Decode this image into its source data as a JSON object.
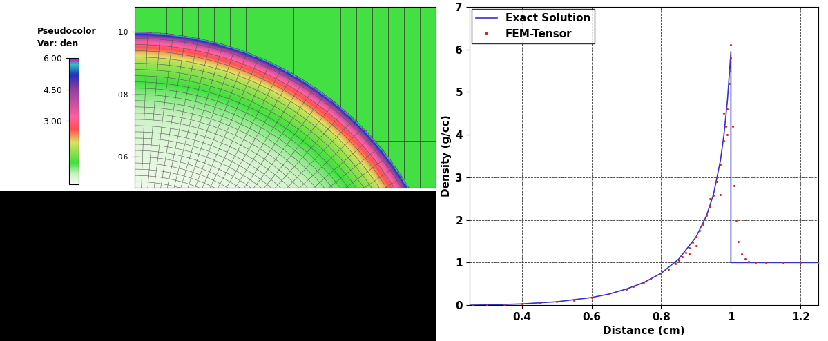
{
  "chart_data": [
    {
      "type": "pseudocolor",
      "title": "Pseudocolor",
      "subtitle": "Var: den",
      "xlim": [
        0.0,
        0.95
      ],
      "ylim": [
        0.5,
        1.08
      ],
      "yticks": [
        0.6,
        0.8,
        {
          "value": 1.0,
          "label": "1.0"
        }
      ],
      "tick_labels": "y",
      "colorbar": {
        "range": [
          0,
          6
        ],
        "ticks": [
          {
            "value": 3,
            "label": "3.00"
          },
          {
            "value": 4.5,
            "label": "4.50"
          },
          {
            "value": 6,
            "label": "6.00"
          }
        ]
      }
    },
    {
      "type": "line",
      "xlabel": "Distance (cm)",
      "ylabel": "Density (g/cc)",
      "xlim": [
        0.25,
        1.25
      ],
      "ylim": [
        0,
        7
      ],
      "xticks": [
        0.4,
        0.6,
        0.8,
        1,
        1.2
      ],
      "yticks": [
        0,
        1,
        2,
        3,
        4,
        5,
        6,
        7
      ],
      "grid": true,
      "legend": "upper left",
      "series": [
        {
          "name": "Exact Solution",
          "type": "line",
          "color": "#3333cc",
          "line_style": "solid",
          "x": [
            0.25,
            0.3,
            0.4,
            0.5,
            0.6,
            0.65,
            0.7,
            0.75,
            0.8,
            0.85,
            0.9,
            0.93,
            0.95,
            0.97,
            0.98,
            0.99,
            1.0,
            1.0,
            1.25
          ],
          "values": [
            0.0,
            0.005,
            0.03,
            0.08,
            0.18,
            0.26,
            0.38,
            0.53,
            0.75,
            1.08,
            1.6,
            2.1,
            2.6,
            3.4,
            4.0,
            4.8,
            5.95,
            1.0,
            1.0
          ]
        },
        {
          "name": "FEM-Tensor",
          "type": "scatter",
          "color": "#dd2222",
          "marker": "dot",
          "x": [
            0.26,
            0.3,
            0.35,
            0.4,
            0.45,
            0.5,
            0.55,
            0.6,
            0.65,
            0.7,
            0.72,
            0.75,
            0.77,
            0.8,
            0.82,
            0.84,
            0.85,
            0.86,
            0.87,
            0.88,
            0.89,
            0.9,
            0.91,
            0.92,
            0.93,
            0.94,
            0.95,
            0.96,
            0.97,
            0.98,
            0.985,
            0.99,
            0.995,
            1.0,
            1.0,
            1.005,
            1.01,
            1.015,
            1.02,
            1.03,
            1.04,
            1.05,
            1.07,
            1.1,
            1.15,
            1.2,
            1.25,
            0.88,
            0.9,
            0.92,
            0.94,
            0.96,
            0.98,
            0.99,
            0.995,
            0.97
          ],
          "values": [
            0.0,
            0.005,
            0.015,
            0.03,
            0.05,
            0.08,
            0.12,
            0.18,
            0.27,
            0.38,
            0.44,
            0.54,
            0.62,
            0.74,
            0.85,
            0.98,
            1.05,
            1.14,
            1.24,
            1.35,
            1.47,
            1.6,
            1.75,
            1.92,
            2.1,
            2.32,
            2.58,
            2.9,
            3.3,
            3.85,
            4.2,
            4.6,
            5.2,
            5.8,
            6.1,
            4.2,
            2.8,
            2.0,
            1.5,
            1.2,
            1.08,
            1.03,
            1.01,
            1.0,
            1.0,
            1.0,
            1.0,
            1.2,
            1.4,
            1.9,
            2.5,
            3.0,
            4.5,
            4.0,
            5.5,
            2.6
          ]
        }
      ]
    }
  ]
}
